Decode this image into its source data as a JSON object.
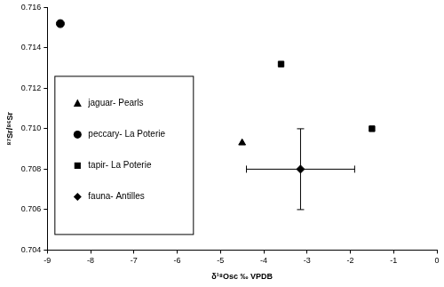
{
  "chart_data": {
    "type": "scatter",
    "x_label": "δ¹⁸Osc ‰ VPDB",
    "y_label": "⁸⁷Sr/⁸⁶Sr",
    "xlim": [
      -9,
      0
    ],
    "xticks": [
      -9,
      -8,
      -7,
      -6,
      -5,
      -4,
      -3,
      -2,
      -1,
      0
    ],
    "ylim": [
      0.704,
      0.716
    ],
    "yticks": [
      0.704,
      0.706,
      0.708,
      {
        "value": 0.71,
        "label": "0.710"
      },
      0.712,
      0.714,
      0.716
    ],
    "grid": false,
    "legend": "lower left",
    "series": [
      {
        "name": "jaguar- Pearls",
        "color": "#000000",
        "marker": "triangle",
        "x": [
          -4.5
        ],
        "values": [
          0.7093
        ]
      },
      {
        "name": "peccary- La Poterie",
        "color": "#000000",
        "marker": "circle",
        "x": [
          -8.7
        ],
        "values": [
          0.7152
        ]
      },
      {
        "name": "tapir- La Poterie",
        "color": "#000000",
        "marker": "square",
        "x": [
          -3.6,
          -1.5
        ],
        "values": [
          0.7132,
          0.71
        ]
      },
      {
        "name": "fauna- Antilles",
        "color": "#000000",
        "marker": "diamond",
        "x": [
          -3.15
        ],
        "values": [
          0.708
        ],
        "x_error": [
          1.25
        ],
        "y_error": [
          0.002
        ]
      }
    ]
  }
}
